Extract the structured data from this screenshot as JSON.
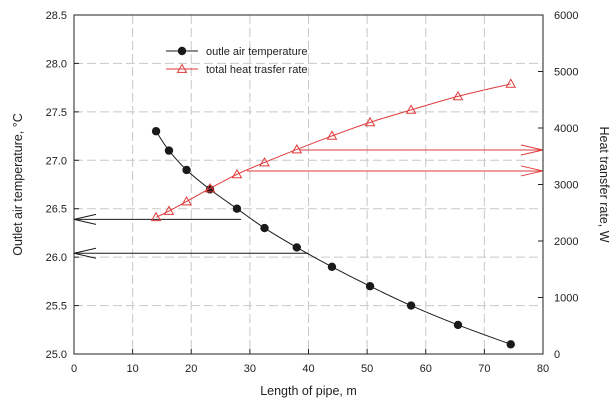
{
  "chart_data": {
    "type": "line",
    "title": "",
    "xlabel": "Length of pipe, m",
    "ylabel": "Outlet air temperature, °C",
    "ylabel_right": "Heat transfer rate, W",
    "xlim": [
      0,
      80
    ],
    "ylim": [
      25.0,
      28.5
    ],
    "ylim_right": [
      0,
      6000
    ],
    "x_ticks": [
      "0",
      "10",
      "20",
      "30",
      "40",
      "50",
      "60",
      "70",
      "80"
    ],
    "y_ticks": [
      "25.0",
      "25.5",
      "26.0",
      "26.5",
      "27.0",
      "27.5",
      "28.0",
      "28.5"
    ],
    "y_ticks_right": [
      "0",
      "1000",
      "2000",
      "3000",
      "4000",
      "5000",
      "6000"
    ],
    "grid": true,
    "legend_position": "top-center",
    "series": [
      {
        "name": "outle air temperature",
        "axis": "left",
        "color": "#1a1a1a",
        "marker": "circle",
        "x": [
          14.0,
          16.2,
          19.2,
          23.2,
          27.8,
          32.5,
          38.0,
          44.0,
          50.5,
          57.5,
          65.5,
          74.5
        ],
        "y": [
          27.3,
          27.1,
          26.9,
          26.7,
          26.5,
          26.3,
          26.1,
          25.9,
          25.7,
          25.5,
          25.3,
          25.1
        ]
      },
      {
        "name": "total heat trasfer rate",
        "axis": "right",
        "color": "#e03a3a",
        "marker": "triangle",
        "x": [
          14.0,
          16.2,
          19.2,
          23.2,
          27.8,
          32.5,
          38.0,
          44.0,
          50.5,
          57.5,
          65.5,
          74.5
        ],
        "y": [
          2420,
          2530,
          2700,
          2930,
          3180,
          3390,
          3620,
          3860,
          4100,
          4320,
          4560,
          4780
        ]
      }
    ],
    "annotations": [
      {
        "type": "arrow",
        "axis": "left",
        "color": "#1a1a1a",
        "y": 26.39,
        "x_from": 28.5,
        "x_to": 0
      },
      {
        "type": "arrow",
        "axis": "left",
        "color": "#1a1a1a",
        "y": 26.04,
        "x_from": 40.0,
        "x_to": 0
      },
      {
        "type": "arrow",
        "axis": "right",
        "color": "#e03a3a",
        "y": 3610,
        "x_from": 38.5,
        "x_to": 80
      },
      {
        "type": "arrow",
        "axis": "right",
        "color": "#e03a3a",
        "y": 3240,
        "x_from": 29.5,
        "x_to": 80
      }
    ]
  }
}
